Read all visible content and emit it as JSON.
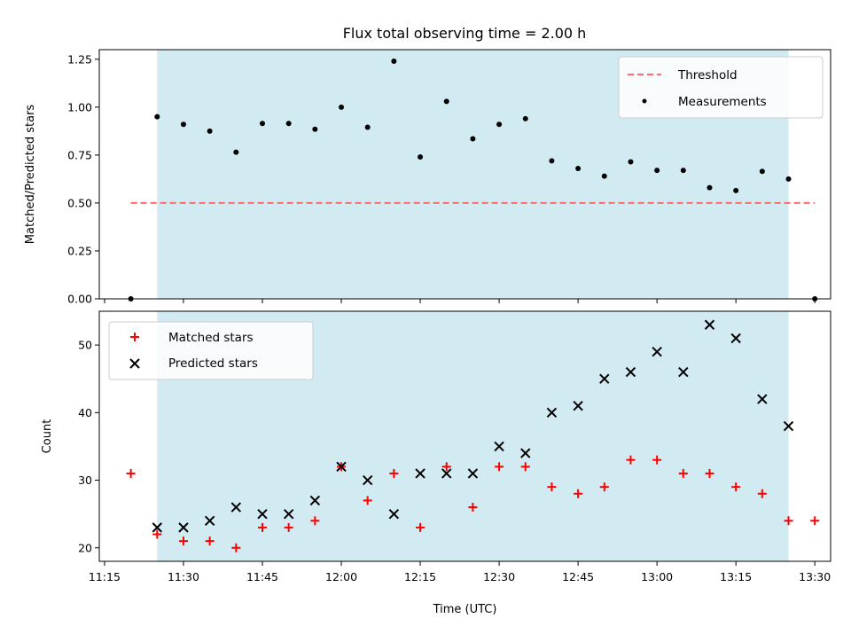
{
  "title": "Flux total observing time = 2.00 h",
  "colors": {
    "shade": "#add8e6",
    "threshold": "#ff6b6b",
    "measurement": "#000000",
    "matched": "#ff0000",
    "predicted": "#000000"
  },
  "chart_data": [
    {
      "type": "scatter",
      "ylabel": "Matched/Predicted stars",
      "xlabel": "",
      "ylim": [
        0,
        1.3
      ],
      "yticks": [
        "0.00",
        "0.25",
        "0.50",
        "0.75",
        "1.00",
        "1.25"
      ],
      "legend_position": "top-right",
      "shaded_interval": [
        "11:25",
        "13:25"
      ],
      "threshold": {
        "name": "Threshold",
        "value": 0.5,
        "x_range": [
          "11:20",
          "13:30"
        ],
        "style": "dashed"
      },
      "series": [
        {
          "name": "Measurements",
          "x": [
            "11:20",
            "11:25",
            "11:30",
            "11:35",
            "11:40",
            "11:45",
            "11:50",
            "11:55",
            "12:00",
            "12:05",
            "12:10",
            "12:15",
            "12:20",
            "12:25",
            "12:30",
            "12:35",
            "12:40",
            "12:45",
            "12:50",
            "12:55",
            "13:00",
            "13:05",
            "13:10",
            "13:15",
            "13:20",
            "13:25",
            "13:30"
          ],
          "y": [
            0.0,
            0.95,
            0.91,
            0.875,
            0.765,
            0.915,
            0.915,
            0.885,
            1.0,
            0.895,
            1.24,
            0.74,
            1.03,
            0.835,
            0.91,
            0.94,
            0.72,
            0.68,
            0.64,
            0.715,
            0.67,
            0.67,
            0.58,
            0.565,
            0.665,
            0.625,
            0.0
          ]
        }
      ]
    },
    {
      "type": "scatter",
      "ylabel": "Count",
      "xlabel": "Time (UTC)",
      "ylim": [
        18,
        55
      ],
      "yticks": [
        "20",
        "30",
        "40",
        "50"
      ],
      "xticks": [
        "11:15",
        "11:30",
        "11:45",
        "12:00",
        "12:15",
        "12:30",
        "12:45",
        "13:00",
        "13:15",
        "13:30"
      ],
      "legend_position": "top-left",
      "shaded_interval": [
        "11:25",
        "13:25"
      ],
      "series": [
        {
          "name": "Matched stars",
          "marker": "plus",
          "x": [
            "11:20",
            "11:25",
            "11:30",
            "11:35",
            "11:40",
            "11:45",
            "11:50",
            "11:55",
            "12:00",
            "12:05",
            "12:10",
            "12:15",
            "12:20",
            "12:25",
            "12:30",
            "12:35",
            "12:40",
            "12:45",
            "12:50",
            "12:55",
            "13:00",
            "13:05",
            "13:10",
            "13:15",
            "13:20",
            "13:25",
            "13:30"
          ],
          "y": [
            31,
            22,
            21,
            21,
            20,
            23,
            23,
            24,
            32,
            27,
            31,
            23,
            32,
            26,
            32,
            32,
            29,
            28,
            29,
            33,
            33,
            31,
            31,
            29,
            28,
            24,
            24
          ]
        },
        {
          "name": "Predicted stars",
          "marker": "x",
          "x": [
            "11:25",
            "11:30",
            "11:35",
            "11:40",
            "11:45",
            "11:50",
            "11:55",
            "12:00",
            "12:05",
            "12:10",
            "12:15",
            "12:20",
            "12:25",
            "12:30",
            "12:35",
            "12:40",
            "12:45",
            "12:50",
            "12:55",
            "13:00",
            "13:05",
            "13:10",
            "13:15",
            "13:20",
            "13:25"
          ],
          "y": [
            23,
            23,
            24,
            26,
            25,
            25,
            27,
            32,
            30,
            25,
            31,
            31,
            31,
            35,
            34,
            40,
            41,
            45,
            46,
            49,
            46,
            53,
            51,
            42,
            38
          ]
        }
      ]
    }
  ]
}
